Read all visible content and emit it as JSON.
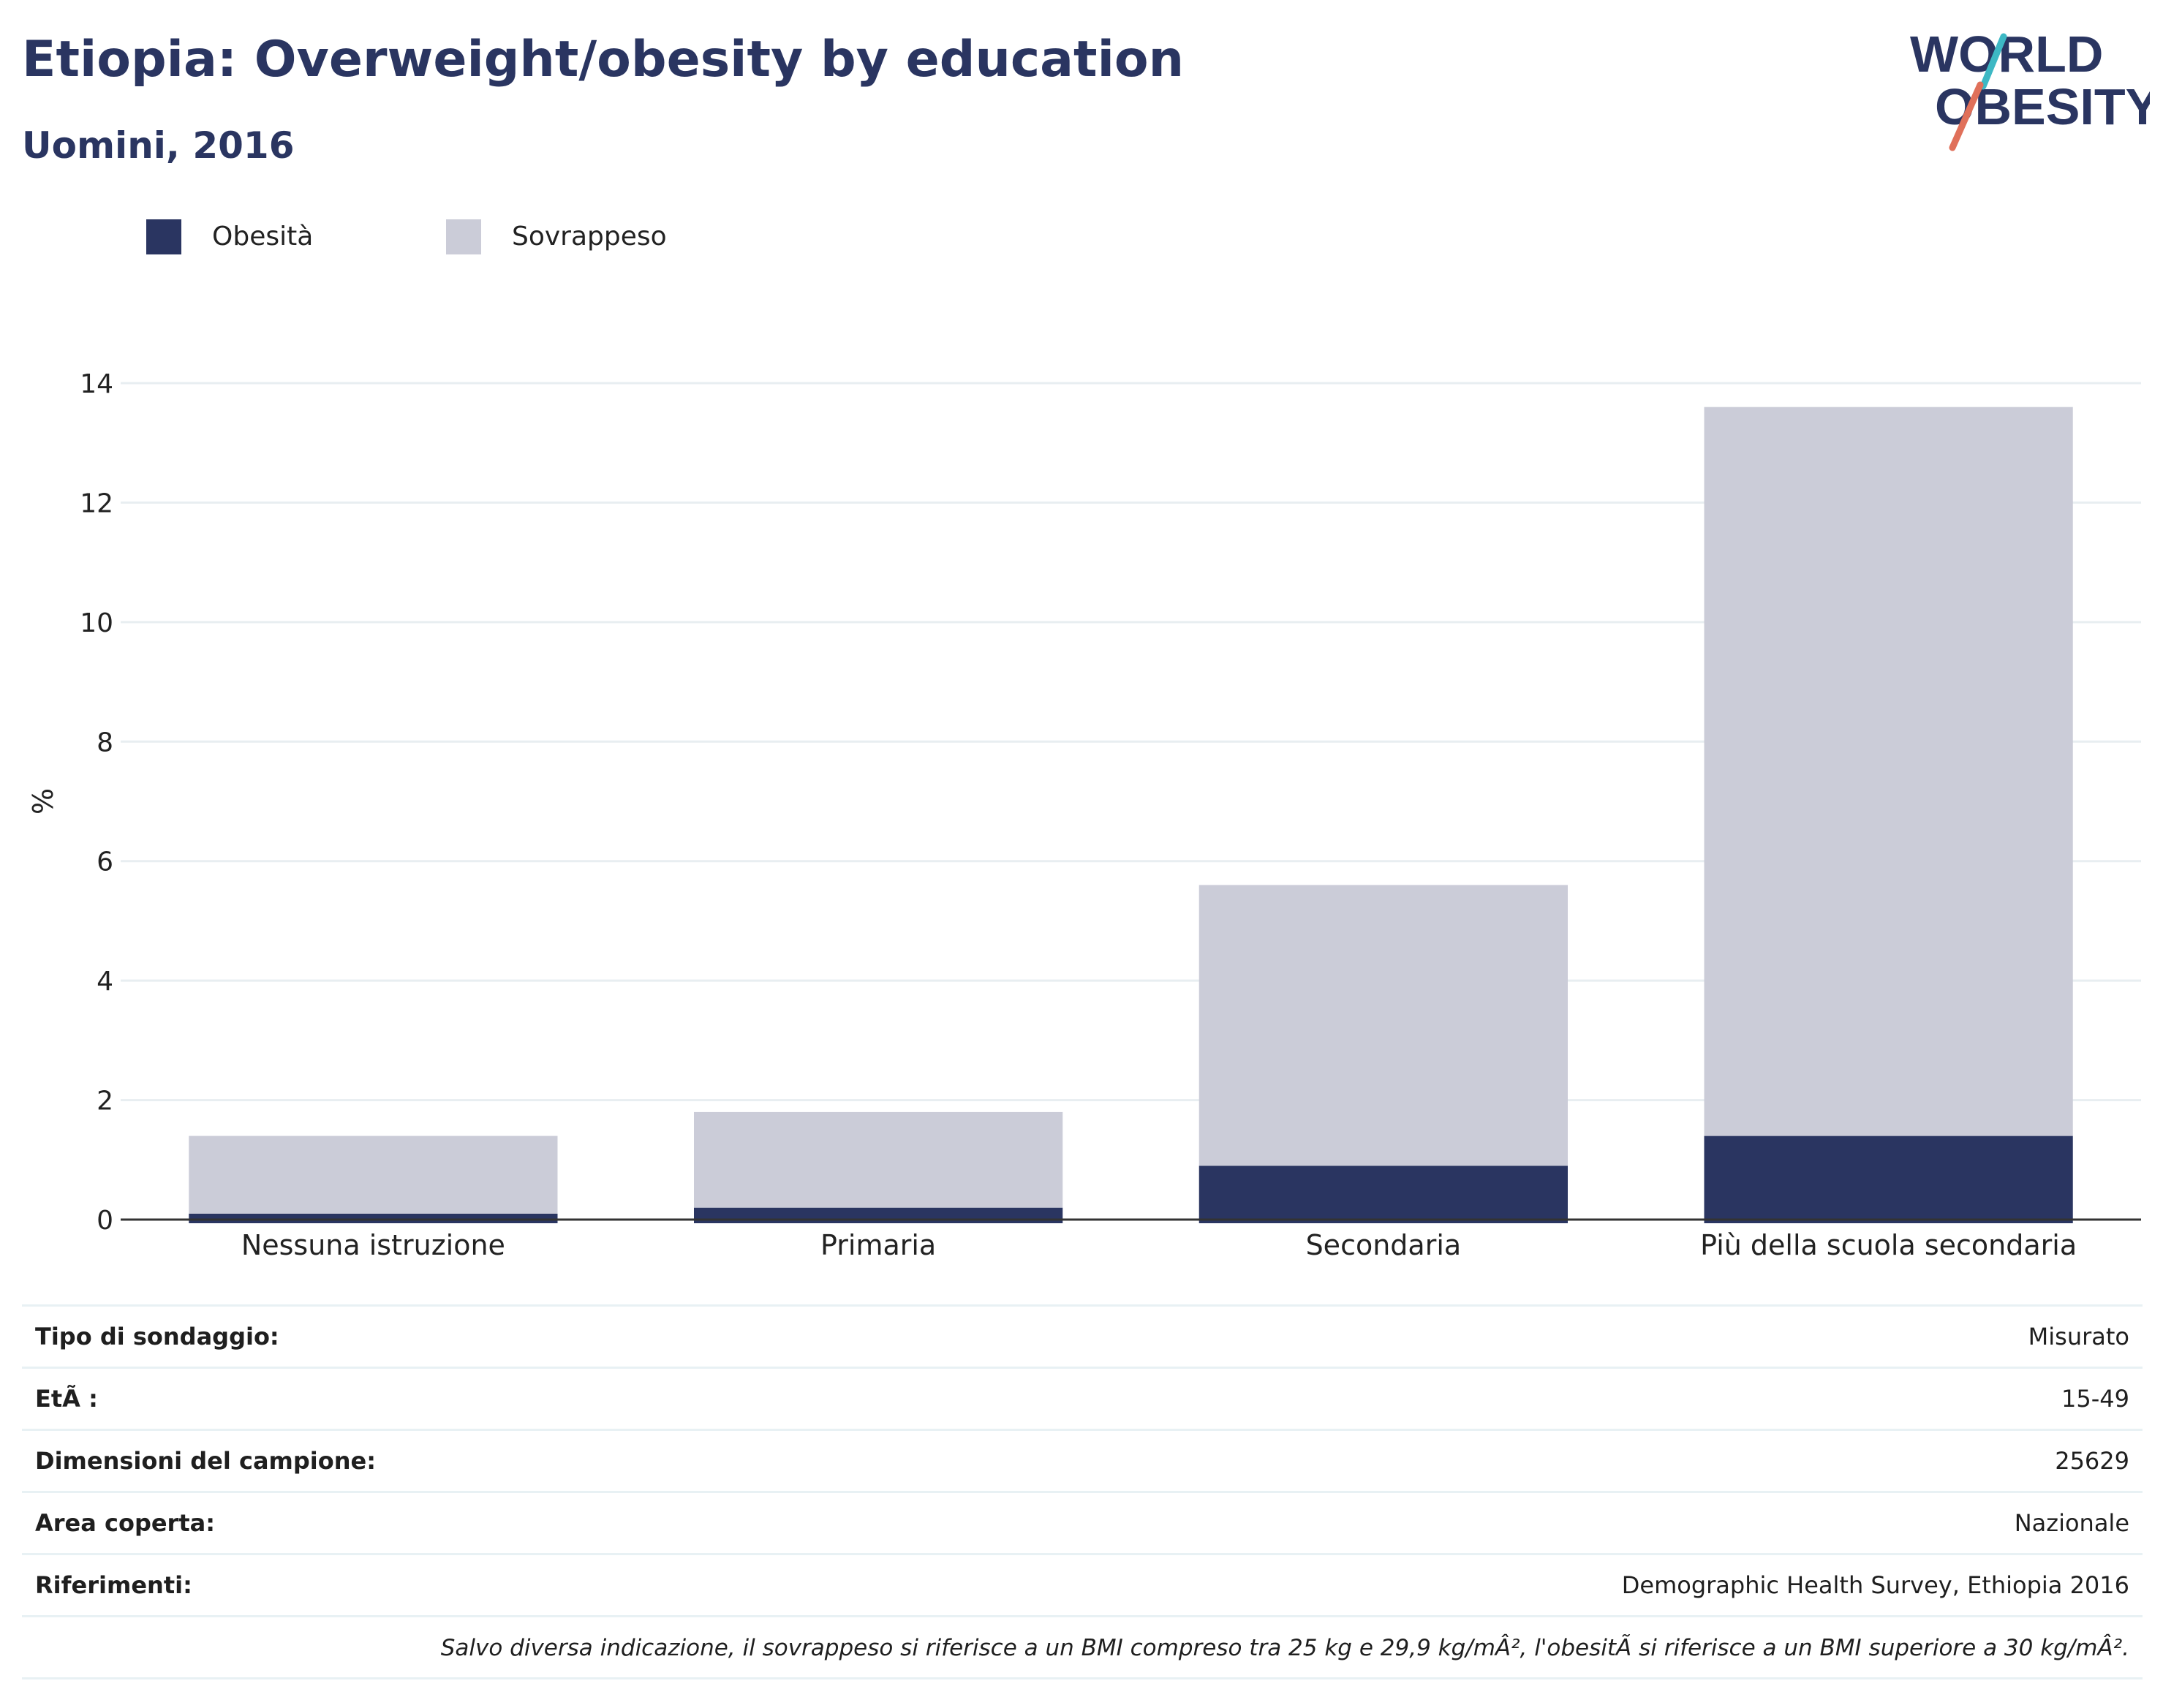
{
  "title": "Etiopia: Overweight/obesity by education",
  "subtitle": "Uomini, 2016",
  "logo": {
    "line1": "WORLD",
    "line2": "OBESITY",
    "accent1": "#3db8c4",
    "accent2": "#e0705a",
    "text_color": "#2a3561"
  },
  "legend": [
    {
      "label": "Obesità",
      "color": "#2a3561"
    },
    {
      "label": "Sovrappeso",
      "color": "#cbccd8"
    }
  ],
  "chart_data": {
    "type": "bar",
    "stacked": true,
    "categories": [
      "Nessuna istruzione",
      "Primaria",
      "Secondaria",
      "Più della scuola secondaria"
    ],
    "series": [
      {
        "name": "Obesità",
        "values": [
          0.1,
          0.2,
          0.9,
          1.4
        ],
        "color": "#2a3561"
      },
      {
        "name": "Sovrappeso",
        "values": [
          1.3,
          1.6,
          4.7,
          12.2
        ],
        "color": "#cbccd8"
      }
    ],
    "ylabel": "%",
    "ylim": [
      0,
      14
    ],
    "yticks": [
      0,
      2,
      4,
      6,
      8,
      10,
      12,
      14
    ],
    "grid": true,
    "legend_position": "top-left"
  },
  "info": [
    {
      "key": "Tipo di sondaggio:",
      "value": "Misurato"
    },
    {
      "key": "EtÃ :",
      "value": "15-49"
    },
    {
      "key": "Dimensioni del campione:",
      "value": "25629"
    },
    {
      "key": "Area coperta:",
      "value": "Nazionale"
    },
    {
      "key": "Riferimenti:",
      "value": "Demographic Health Survey, Ethiopia 2016"
    }
  ],
  "note": "Salvo diversa indicazione, il sovrappeso si riferisce a un BMI compreso tra 25 kg e 29,9 kg/mÂ², l'obesitÃ  si riferisce a un BMI superiore a 30 kg/mÂ²."
}
